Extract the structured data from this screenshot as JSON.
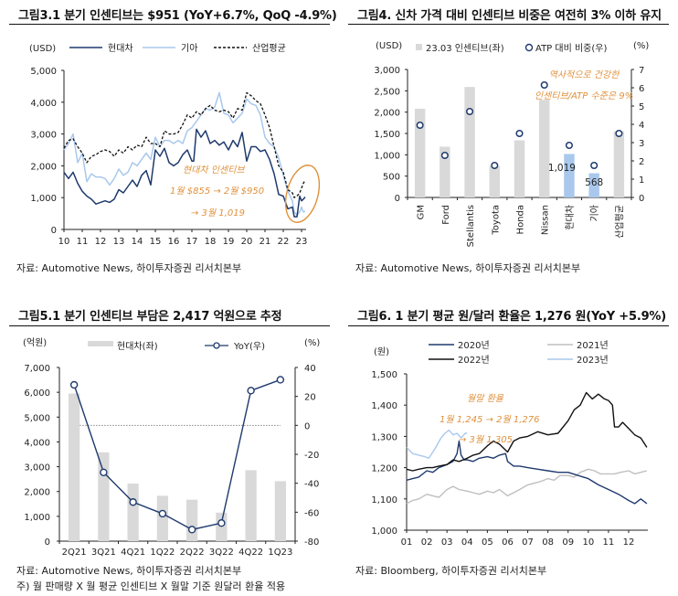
{
  "figures": {
    "fig1": {
      "title": "그림3.1 분기 인센티브는 $951 (YoY+6.7%, QoQ -4.9%)",
      "source": "자료: Automotive News,   하이투자증권 리서치본부"
    },
    "fig2": {
      "title": "그림4. 신차 가격 대비 인센티브 비중은 여전히 3% 이하 유지",
      "source": "자료: Automotive News,   하이투자증권 리서치본부"
    },
    "fig3": {
      "title": "그림5.1 분기 인센티브 부담은 2,417 억원으로 추정",
      "source": "자료: Automotive News,   하이투자증권 리서치본부",
      "note": "주) 월 판매량 X 월 평균 인센티브 X 월말 기준 원달러 환율 적용"
    },
    "fig4": {
      "title": "그림6. 1 분기 평균 원/달러 환율은 1,276 원(YoY +5.9%)",
      "source": "자료: Bloomberg,   하이투자증권 리서치본부"
    }
  },
  "chart_data": [
    {
      "id": "incentive-trend",
      "type": "line",
      "title": "그림3.1 분기 인센티브는 $951 (YoY+6.7%, QoQ -4.9%)",
      "ylabel": "(USD)",
      "ylim": [
        0,
        5000
      ],
      "yticks": [
        0,
        1000,
        2000,
        3000,
        4000,
        5000
      ],
      "ytick_labels": [
        "0",
        "1,000",
        "2,000",
        "3,000",
        "4,000",
        "5,000"
      ],
      "xlim": [
        10,
        23.25
      ],
      "xticks": [
        10,
        11,
        12,
        13,
        14,
        15,
        16,
        17,
        18,
        19,
        20,
        21,
        22,
        23
      ],
      "xtick_labels": [
        "10",
        "11",
        "12",
        "13",
        "14",
        "15",
        "16",
        "17",
        "18",
        "19",
        "20",
        "21",
        "22",
        "23"
      ],
      "legend": [
        "현대차",
        "기아",
        "산업평균"
      ],
      "legend_position": "top",
      "colors": {
        "hyundai": "#1f3a6e",
        "kia": "#a9c8ec",
        "industry": "#111111",
        "annotation": "#e0913c"
      },
      "series": [
        {
          "name": "현대차",
          "style": "solid",
          "x": [
            10.0,
            10.25,
            10.5,
            10.75,
            11.0,
            11.25,
            11.5,
            11.75,
            12.0,
            12.25,
            12.5,
            12.75,
            13.0,
            13.25,
            13.5,
            13.75,
            14.0,
            14.25,
            14.5,
            14.75,
            15.0,
            15.25,
            15.5,
            15.75,
            16.0,
            16.25,
            16.5,
            16.75,
            17.0,
            17.1,
            17.25,
            17.5,
            17.75,
            18.0,
            18.25,
            18.5,
            18.75,
            19.0,
            19.25,
            19.5,
            19.75,
            20.0,
            20.25,
            20.5,
            20.75,
            21.0,
            21.25,
            21.5,
            21.75,
            22.0,
            22.25,
            22.5,
            22.6,
            22.75,
            22.9,
            23.0,
            23.1,
            23.2
          ],
          "y": [
            1800,
            1600,
            1800,
            1450,
            1200,
            1050,
            950,
            800,
            850,
            900,
            850,
            950,
            1250,
            1150,
            1350,
            1550,
            1350,
            1700,
            1850,
            1400,
            2500,
            2300,
            2550,
            2100,
            2000,
            2100,
            2350,
            2500,
            2150,
            2150,
            3150,
            2900,
            3100,
            2700,
            2800,
            2650,
            2750,
            2500,
            2800,
            2600,
            3050,
            2150,
            2600,
            2600,
            2450,
            2500,
            2200,
            1750,
            1100,
            1050,
            650,
            700,
            400,
            400,
            1050,
            900,
            950,
            1019
          ]
        },
        {
          "name": "기아",
          "style": "solid",
          "x": [
            10.0,
            10.25,
            10.5,
            10.75,
            11.0,
            11.25,
            11.5,
            11.75,
            12.0,
            12.25,
            12.5,
            12.75,
            13.0,
            13.25,
            13.5,
            13.75,
            14.0,
            14.25,
            14.5,
            14.75,
            15.0,
            15.25,
            15.5,
            15.75,
            16.0,
            16.25,
            16.5,
            16.75,
            17.0,
            17.25,
            17.5,
            17.75,
            18.0,
            18.25,
            18.5,
            18.75,
            19.0,
            19.25,
            19.5,
            19.75,
            20.0,
            20.25,
            20.5,
            20.75,
            21.0,
            21.25,
            21.5,
            21.75,
            22.0,
            22.25,
            22.5,
            22.6,
            22.75,
            22.9,
            23.0,
            23.1,
            23.2
          ],
          "y": [
            2500,
            2700,
            3000,
            2100,
            2400,
            1500,
            1750,
            1650,
            1650,
            1600,
            1400,
            1600,
            1900,
            1700,
            1800,
            2100,
            2000,
            2200,
            2400,
            2200,
            2900,
            2600,
            2800,
            2800,
            2700,
            2800,
            2700,
            3100,
            3200,
            3400,
            3600,
            3800,
            3750,
            3850,
            4300,
            3650,
            3600,
            3350,
            3500,
            3650,
            4100,
            3950,
            3900,
            3600,
            2900,
            2700,
            2600,
            2250,
            1700,
            1200,
            900,
            550,
            450,
            550,
            700,
            550,
            568
          ]
        },
        {
          "name": "산업평균",
          "style": "dashed",
          "x": [
            10.0,
            10.25,
            10.5,
            10.75,
            11.0,
            11.25,
            11.5,
            11.75,
            12.0,
            12.25,
            12.5,
            12.75,
            13.0,
            13.25,
            13.5,
            13.75,
            14.0,
            14.25,
            14.5,
            14.75,
            15.0,
            15.25,
            15.5,
            15.75,
            16.0,
            16.25,
            16.5,
            16.75,
            17.0,
            17.25,
            17.5,
            17.75,
            18.0,
            18.25,
            18.5,
            18.75,
            19.0,
            19.25,
            19.5,
            19.75,
            20.0,
            20.25,
            20.5,
            20.75,
            21.0,
            21.25,
            21.5,
            21.75,
            22.0,
            22.25,
            22.5,
            22.6,
            22.75,
            22.9,
            23.0,
            23.1,
            23.2
          ],
          "y": [
            2550,
            2800,
            2850,
            2600,
            2400,
            2100,
            2300,
            2350,
            2450,
            2500,
            2450,
            2300,
            2500,
            2400,
            2600,
            2500,
            2650,
            2600,
            2900,
            2700,
            2700,
            2600,
            3100,
            3000,
            3000,
            3050,
            3300,
            3600,
            3500,
            3700,
            3600,
            3800,
            3900,
            3750,
            3700,
            3750,
            3700,
            3500,
            3800,
            3750,
            4300,
            4200,
            4050,
            3950,
            3600,
            3200,
            2600,
            2000,
            1800,
            1250,
            1150,
            1000,
            1050,
            1150,
            1300,
            1450,
            1550
          ]
        }
      ],
      "annotations": [
        "현대차 인센티브",
        "1월 $855 → 2월 $950",
        "→ 3월 1,019"
      ]
    },
    {
      "id": "incentive-ratio",
      "type": "bar",
      "title": "그림4. 신차 가격 대비 인센티브 비중은 여전히 3% 이하 유지",
      "categories": [
        "GM",
        "Ford",
        "Stellantis",
        "Toyota",
        "Honda",
        "Nissan",
        "현대차",
        "기아",
        "산업평균"
      ],
      "ylabel": "(USD)",
      "y2label": "(%)",
      "ylim": [
        0,
        3000
      ],
      "y2lim": [
        0,
        7
      ],
      "yticks": [
        0,
        500,
        1000,
        1500,
        2000,
        2500,
        3000
      ],
      "ytick_labels": [
        "0",
        "500",
        "1,000",
        "1,500",
        "2,000",
        "2,500",
        "3,000"
      ],
      "y2ticks": [
        0,
        1,
        2,
        3,
        4,
        5,
        6,
        7
      ],
      "legend": [
        "23.03 인센티브(좌)",
        "ATP 대비 비중(우)"
      ],
      "legend_position": "top",
      "colors": {
        "bar": "#d9d9d9",
        "bar_highlight": "#a9c8ec",
        "marker": "#1f3a6e",
        "annotation": "#e0913c"
      },
      "series": [
        {
          "name": "23.03 인센티브(좌)",
          "type": "bar",
          "axis": "left",
          "values": [
            2080,
            1190,
            2590,
            740,
            1340,
            2290,
            1019,
            568,
            1550
          ],
          "highlight": [
            false,
            false,
            false,
            false,
            false,
            false,
            true,
            true,
            false
          ]
        },
        {
          "name": "ATP 대비 비중(우)",
          "type": "scatter",
          "axis": "right",
          "values": [
            3.95,
            2.3,
            4.7,
            1.75,
            3.5,
            6.15,
            2.85,
            1.75,
            3.5
          ]
        }
      ],
      "data_labels": [
        {
          "category": "현대차",
          "text": "1,019"
        },
        {
          "category": "기아",
          "text": "568"
        }
      ],
      "annotations": [
        "역사적으로 건강한",
        "인센티브/ATP 수준은 9%"
      ]
    },
    {
      "id": "incentive-burden",
      "type": "bar",
      "title": "그림5.1 분기 인센티브 부담은 2,417 억원으로 추정",
      "categories": [
        "2Q21",
        "3Q21",
        "4Q21",
        "1Q22",
        "2Q22",
        "3Q22",
        "4Q22",
        "1Q23"
      ],
      "ylabel": "(억원)",
      "y2label": "(%)",
      "ylim": [
        0,
        7000
      ],
      "y2lim": [
        -80,
        40
      ],
      "yticks": [
        0,
        1000,
        2000,
        3000,
        4000,
        5000,
        6000,
        7000
      ],
      "ytick_labels": [
        "0",
        "1,000",
        "2,000",
        "3,000",
        "4,000",
        "5,000",
        "6,000",
        "7,000"
      ],
      "y2ticks": [
        -80,
        -60,
        -40,
        -20,
        0,
        20,
        40
      ],
      "legend": [
        "현대차(좌)",
        "YoY(우)"
      ],
      "legend_position": "top",
      "colors": {
        "bar": "#d9d9d9",
        "line": "#1f3a6e",
        "zero_line": "#888888"
      },
      "series": [
        {
          "name": "현대차(좌)",
          "type": "bar",
          "axis": "left",
          "values": [
            5950,
            3580,
            2320,
            1830,
            1670,
            1150,
            2860,
            2417
          ]
        },
        {
          "name": "YoY(우)",
          "type": "line",
          "axis": "right",
          "values": [
            28,
            -32.5,
            -53,
            -61,
            -72,
            -67.5,
            24,
            31.5
          ]
        }
      ]
    },
    {
      "id": "krw-usd",
      "type": "line",
      "title": "그림6. 1 분기 평균 원/달러 환율은 1,276 원(YoY +5.9%)",
      "ylabel": "(원)",
      "ylim": [
        1000,
        1500
      ],
      "yticks": [
        1000,
        1100,
        1200,
        1300,
        1400,
        1500
      ],
      "ytick_labels": [
        "1,000",
        "1,100",
        "1,200",
        "1,300",
        "1,400",
        "1,500"
      ],
      "xlim": [
        1,
        12.95
      ],
      "xticks": [
        1,
        2,
        3,
        4,
        5,
        6,
        7,
        8,
        9,
        10,
        11,
        12
      ],
      "xtick_labels": [
        "01",
        "02",
        "03",
        "04",
        "05",
        "06",
        "07",
        "08",
        "09",
        "10",
        "11",
        "12"
      ],
      "legend": [
        "2020년",
        "2021년",
        "2022년",
        "2023년"
      ],
      "legend_position": "top",
      "colors": {
        "y2020": "#1f3a6e",
        "y2021": "#bfbfbf",
        "y2022": "#111111",
        "y2023": "#a9c8ec",
        "annotation": "#e0913c"
      },
      "series": [
        {
          "name": "2020년",
          "x": [
            1.0,
            1.3,
            1.6,
            2.0,
            2.3,
            2.6,
            3.0,
            3.3,
            3.5,
            3.6,
            3.7,
            3.85,
            4.0,
            4.3,
            4.6,
            5.0,
            5.3,
            5.6,
            5.9,
            6.0,
            6.3,
            6.6,
            7.0,
            7.5,
            8.0,
            8.5,
            9.0,
            9.5,
            10.0,
            10.5,
            11.0,
            11.5,
            12.0,
            12.3,
            12.6,
            12.9
          ],
          "y": [
            1160,
            1165,
            1170,
            1190,
            1185,
            1200,
            1210,
            1220,
            1245,
            1285,
            1240,
            1225,
            1225,
            1220,
            1230,
            1235,
            1230,
            1240,
            1245,
            1220,
            1205,
            1205,
            1200,
            1195,
            1190,
            1185,
            1185,
            1175,
            1165,
            1145,
            1130,
            1115,
            1095,
            1085,
            1100,
            1085
          ]
        },
        {
          "name": "2021년",
          "x": [
            1.0,
            1.3,
            1.6,
            2.0,
            2.3,
            2.6,
            3.0,
            3.3,
            3.6,
            4.0,
            4.3,
            4.6,
            5.0,
            5.3,
            5.6,
            6.0,
            6.3,
            6.6,
            7.0,
            7.3,
            7.6,
            8.0,
            8.3,
            8.6,
            9.0,
            9.3,
            9.6,
            10.0,
            10.3,
            10.6,
            11.0,
            11.3,
            11.6,
            12.0,
            12.3,
            12.6,
            12.9
          ],
          "y": [
            1085,
            1095,
            1100,
            1115,
            1110,
            1105,
            1130,
            1140,
            1130,
            1125,
            1120,
            1115,
            1125,
            1120,
            1130,
            1110,
            1120,
            1130,
            1145,
            1150,
            1155,
            1165,
            1160,
            1175,
            1175,
            1170,
            1185,
            1195,
            1190,
            1180,
            1180,
            1180,
            1185,
            1190,
            1180,
            1185,
            1190
          ]
        },
        {
          "name": "2022년",
          "x": [
            1.0,
            1.3,
            1.6,
            2.0,
            2.3,
            2.6,
            3.0,
            3.3,
            3.6,
            4.0,
            4.3,
            4.6,
            5.0,
            5.3,
            5.6,
            6.0,
            6.3,
            6.6,
            7.0,
            7.5,
            8.0,
            8.5,
            9.0,
            9.3,
            9.6,
            9.9,
            10.2,
            10.5,
            10.8,
            11.0,
            11.2,
            11.3,
            11.5,
            11.7,
            12.0,
            12.3,
            12.6,
            12.9
          ],
          "y": [
            1195,
            1190,
            1195,
            1200,
            1200,
            1205,
            1210,
            1225,
            1220,
            1230,
            1240,
            1245,
            1270,
            1285,
            1275,
            1250,
            1285,
            1295,
            1300,
            1315,
            1305,
            1310,
            1350,
            1385,
            1400,
            1440,
            1420,
            1435,
            1420,
            1415,
            1400,
            1330,
            1330,
            1345,
            1325,
            1305,
            1295,
            1265
          ]
        },
        {
          "name": "2023년",
          "x": [
            1.0,
            1.3,
            1.6,
            1.9,
            2.1,
            2.4,
            2.7,
            2.9,
            3.1,
            3.3,
            3.5,
            3.7,
            3.9,
            4.0
          ],
          "y": [
            1265,
            1245,
            1240,
            1235,
            1230,
            1260,
            1295,
            1310,
            1320,
            1305,
            1310,
            1295,
            1310,
            1310
          ]
        }
      ],
      "annotations": [
        "월말 환율",
        "1월 1,245 → 2월 1,276",
        "→ 3월 1,305"
      ]
    }
  ]
}
